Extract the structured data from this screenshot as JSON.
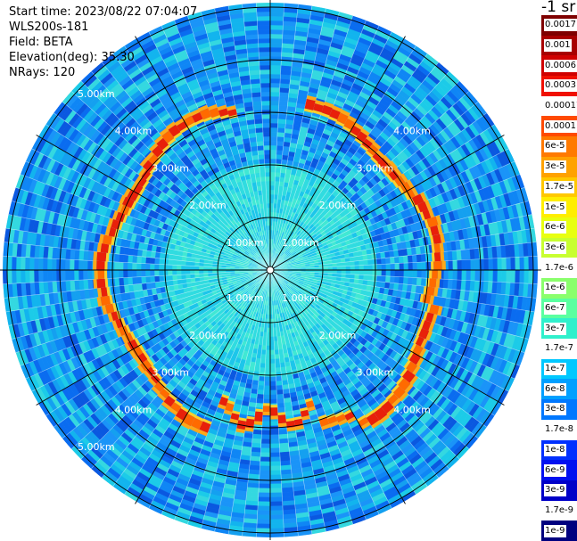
{
  "header": {
    "start_time": "Start time: 2023/08/22 07:04:07",
    "device": "WLS200s-181",
    "field": "Field: BETA",
    "elevation": "Elevation(deg): 35.30",
    "nrays": "NRays: 120"
  },
  "units_label": "-1 sr",
  "legend": [
    {
      "label": "0.0017",
      "color": "#7f0000"
    },
    {
      "label": "0.001",
      "color": "#a80000"
    },
    {
      "label": "0.0006",
      "color": "#d00000"
    },
    {
      "label": "0.0003",
      "color": "#f01000"
    },
    {
      "label": "0.00017",
      "color": "#ffffff"
    },
    {
      "label": "0.0001",
      "color": "#ff4a00"
    },
    {
      "label": "6e-5",
      "color": "#ff7a00"
    },
    {
      "label": "3e-5",
      "color": "#ffa200"
    },
    {
      "label": "1.7e-5",
      "color": "#ffc800"
    },
    {
      "label": "1e-5",
      "color": "#ffee00"
    },
    {
      "label": "6e-6",
      "color": "#e8ff10"
    },
    {
      "label": "3e-6",
      "color": "#c8ff30"
    },
    {
      "label": "1.7e-6",
      "color": "#ffffff"
    },
    {
      "label": "1e-6",
      "color": "#8aff6c"
    },
    {
      "label": "6e-7",
      "color": "#5affa0"
    },
    {
      "label": "3e-7",
      "color": "#30f0cc"
    },
    {
      "label": "1.7e-7",
      "color": "#ffffff"
    },
    {
      "label": "1e-7",
      "color": "#00c8ff"
    },
    {
      "label": "6e-8",
      "color": "#00a0ff"
    },
    {
      "label": "3e-8",
      "color": "#0078ff"
    },
    {
      "label": "1.7e-8",
      "color": "#ffffff"
    },
    {
      "label": "1e-8",
      "color": "#0030ff"
    },
    {
      "label": "6e-9",
      "color": "#0010f0"
    },
    {
      "label": "3e-9",
      "color": "#0000c8"
    },
    {
      "label": "1.7e-9",
      "color": "#ffffff"
    },
    {
      "label": "1e-9",
      "color": "#00007f"
    }
  ],
  "range_rings": [
    "1.00km",
    "2.00km",
    "3.00km",
    "4.00km",
    "5.00km"
  ],
  "colors": {
    "background_field": "#12a8e8",
    "aerosol_layer_red": "#e8200a",
    "aerosol_layer_orange": "#ff9a10",
    "grid": "#000000"
  }
}
